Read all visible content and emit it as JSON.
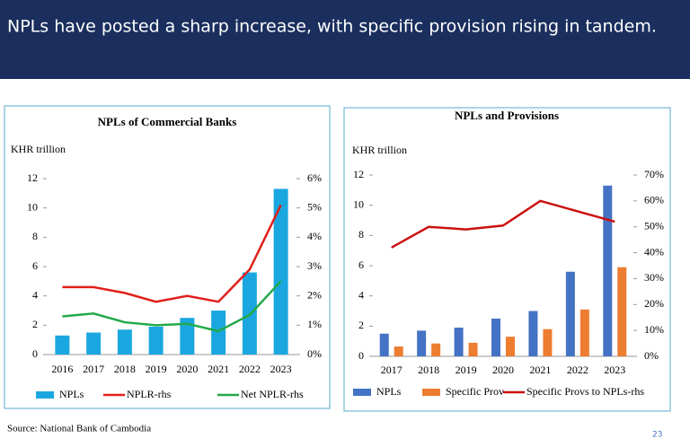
{
  "header": {
    "title": "NPLs have posted a sharp increase, with specific provision rising in tandem."
  },
  "chart_data": [
    {
      "type": "bar",
      "title": "NPLs of Commercial Banks",
      "ylabel": "KHR trillion",
      "categories": [
        "2016",
        "2017",
        "2018",
        "2019",
        "2020",
        "2021",
        "2022",
        "2023"
      ],
      "series": [
        {
          "name": "NPLs",
          "type": "bar",
          "color": "#1aa7e0",
          "values": [
            1.3,
            1.5,
            1.7,
            1.9,
            2.5,
            3.0,
            5.6,
            11.3
          ]
        },
        {
          "name": "NPLR-rhs",
          "type": "line",
          "axis": "y2",
          "color": "#e0201b",
          "values": [
            2.3,
            2.3,
            2.1,
            1.8,
            2.0,
            1.8,
            2.9,
            5.1
          ]
        },
        {
          "name": "Net NPLR-rhs",
          "type": "line",
          "axis": "y2",
          "color": "#22a94a",
          "values": [
            1.3,
            1.4,
            1.1,
            1.0,
            1.05,
            0.8,
            1.35,
            2.5
          ]
        }
      ],
      "ylim": [
        0,
        12
      ],
      "yticks": [
        0,
        2,
        4,
        6,
        8,
        10,
        12
      ],
      "y2lim": [
        0,
        6
      ],
      "y2ticks": [
        {
          "value": 0,
          "label": "0%"
        },
        {
          "value": 1,
          "label": "1%"
        },
        {
          "value": 2,
          "label": "2%"
        },
        {
          "value": 3,
          "label": "3%"
        },
        {
          "value": 4,
          "label": "4%"
        },
        {
          "value": 5,
          "label": "5%"
        },
        {
          "value": 6,
          "label": "6%"
        }
      ]
    },
    {
      "type": "bar",
      "title": "NPLs and Provisions",
      "ylabel": "KHR trillion",
      "categories": [
        "2017",
        "2018",
        "2019",
        "2020",
        "2021",
        "2022",
        "2023"
      ],
      "series": [
        {
          "name": "NPLs",
          "type": "bar",
          "color": "#4472c4",
          "values": [
            1.5,
            1.7,
            1.9,
            2.5,
            3.0,
            5.6,
            11.3
          ]
        },
        {
          "name": "Specific Prov",
          "type": "bar",
          "color": "#ed7d31",
          "values": [
            0.65,
            0.85,
            0.9,
            1.3,
            1.8,
            3.1,
            5.9
          ]
        },
        {
          "name": "Specific Provs to NPLs-rhs",
          "type": "line",
          "axis": "y2",
          "color": "#cc1010",
          "values": [
            42,
            50,
            49,
            50.5,
            60,
            56,
            52
          ]
        }
      ],
      "ylim": [
        0,
        12
      ],
      "yticks": [
        0,
        2,
        4,
        6,
        8,
        10,
        12
      ],
      "y2lim": [
        0,
        70
      ],
      "y2ticks": [
        {
          "value": 0,
          "label": "0%"
        },
        {
          "value": 10,
          "label": "10%"
        },
        {
          "value": 20,
          "label": "20%"
        },
        {
          "value": 30,
          "label": "30%"
        },
        {
          "value": 40,
          "label": "40%"
        },
        {
          "value": 50,
          "label": "50%"
        },
        {
          "value": 60,
          "label": "60%"
        },
        {
          "value": 70,
          "label": "70%"
        }
      ]
    }
  ],
  "source": "Source: National Bank of Cambodia",
  "page_number": "23"
}
